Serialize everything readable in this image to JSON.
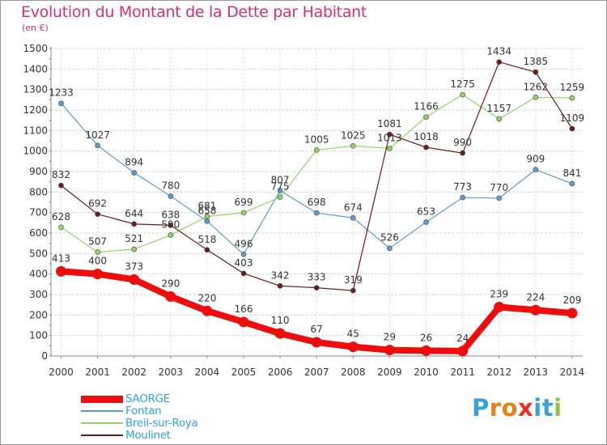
{
  "title": "Evolution du Montant de la Dette par Habitant",
  "subtitle": "(en €)",
  "logo": {
    "text": "Proxiti",
    "letters": [
      "P",
      "r",
      "o",
      "x",
      "i",
      "t",
      "i"
    ],
    "colors": [
      "#3aa1d8",
      "#e8801a",
      "#e8801a",
      "#e83228",
      "#3aa1d8",
      "#3aa1d8",
      "#8cc63f"
    ]
  },
  "chart_data": {
    "type": "line",
    "x": [
      "2000",
      "2001",
      "2002",
      "2003",
      "2004",
      "2005",
      "2006",
      "2007",
      "2008",
      "2009",
      "2010",
      "2011",
      "2012",
      "2013",
      "2014"
    ],
    "yticks": [
      "0",
      "100",
      "200",
      "300",
      "400",
      "500",
      "600",
      "700",
      "800",
      "900",
      "1000",
      "1100",
      "1200",
      "1300",
      "1400",
      "1500"
    ],
    "ylim": [
      0,
      1500
    ],
    "grid": true,
    "legend_position": "bottom-left",
    "series": [
      {
        "name": "Fontan",
        "color": "#5b9bd0",
        "labels_above": true,
        "values": [
          1233,
          1027,
          894,
          780,
          658,
          496,
          807,
          698,
          674,
          526,
          653,
          773,
          770,
          909,
          841
        ],
        "labels": [
          "1233",
          "1027",
          "894",
          "780",
          "658",
          "496",
          "807",
          "698",
          "674",
          "526",
          "653",
          "773",
          "770",
          "909",
          "841"
        ]
      },
      {
        "name": "Breil-sur-Roya",
        "color": "#8fd465",
        "labels_above": true,
        "values": [
          628,
          507,
          521,
          590,
          681,
          699,
          775,
          1005,
          1025,
          1013,
          1166,
          1275,
          1157,
          1262,
          1259
        ],
        "labels": [
          "628",
          "507",
          "521",
          "590",
          "681",
          "699",
          "775",
          "1005",
          "1025",
          "1013",
          "1166",
          "1275",
          "1157",
          "1262",
          "1259"
        ]
      },
      {
        "name": "Moulinet",
        "color": "#6b1a1a",
        "labels_above": true,
        "values": [
          832,
          692,
          644,
          638,
          518,
          403,
          342,
          333,
          319,
          1081,
          1018,
          990,
          1434,
          1385,
          1109
        ],
        "labels": [
          "832",
          "692",
          "644",
          "638",
          "518",
          "403",
          "342",
          "333",
          "319",
          "1081",
          "1018",
          "990",
          "1434",
          "1385",
          "1109"
        ]
      },
      {
        "name": "SAORGE",
        "color": "#ee0d0d",
        "labels_above": true,
        "thick": true,
        "values": [
          413,
          400,
          373,
          290,
          220,
          166,
          110,
          67,
          45,
          29,
          26,
          24,
          239,
          224,
          209
        ],
        "labels": [
          "413",
          "400",
          "373",
          "290",
          "220",
          "166",
          "110",
          "67",
          "45",
          "29",
          "26",
          "24",
          "239",
          "224",
          "209"
        ]
      }
    ],
    "legend_order": [
      "SAORGE",
      "Fontan",
      "Breil-sur-Roya",
      "Moulinet"
    ]
  }
}
